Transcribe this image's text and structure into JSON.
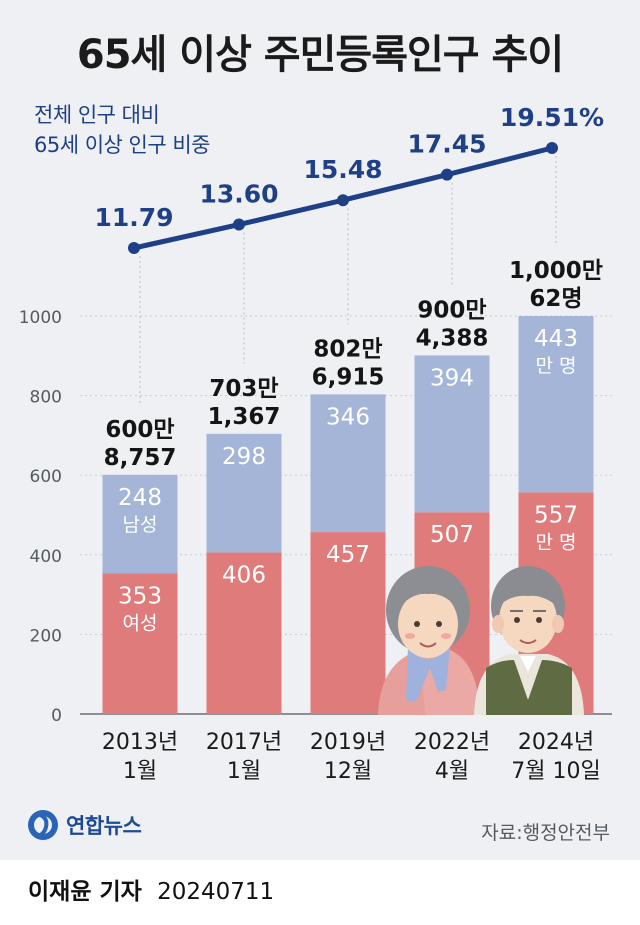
{
  "title": "65세 이상 주민등록인구 추이",
  "ratio_label_line1": "전체 인구 대비",
  "ratio_label_line2": "65세 이상 인구 비중",
  "source": "자료:행정안전부",
  "logo_text": "연합뉴스",
  "byline_name": "이재윤 기자",
  "byline_date": "20240711",
  "colors": {
    "female": "#e07b7b",
    "male": "#a4b5d8",
    "line": "#1f3f86",
    "background": "#eef0f3"
  },
  "chart_data": [
    {
      "type": "bar",
      "stacked": true,
      "categories": [
        [
          "2013년",
          "1월"
        ],
        [
          "2017년",
          "1월"
        ],
        [
          "2019년",
          "12월"
        ],
        [
          "2022년",
          "4월"
        ],
        [
          "2024년",
          "7월 10일"
        ]
      ],
      "yticks": [
        "0",
        "200",
        "400",
        "600",
        "800",
        "1000"
      ],
      "ylim": [
        0,
        1000
      ],
      "series": [
        {
          "name": "여성",
          "values": [
            353,
            406,
            457,
            507,
            557
          ]
        },
        {
          "name": "남성",
          "values": [
            248,
            298,
            346,
            394,
            443
          ]
        }
      ],
      "total_labels": [
        [
          "600만",
          "8,757"
        ],
        [
          "703만",
          "1,367"
        ],
        [
          "802만",
          "6,915"
        ],
        [
          "900만",
          "4,388"
        ],
        [
          "1,000만",
          "62명"
        ]
      ],
      "inline_labels": {
        "female_first": "여성",
        "male_first": "남성",
        "unit_last": "만 명"
      }
    },
    {
      "type": "line",
      "values": [
        11.79,
        13.6,
        15.48,
        17.45,
        19.51
      ],
      "value_labels": [
        "11.79",
        "13.60",
        "15.48",
        "17.45",
        "19.51%"
      ]
    }
  ]
}
